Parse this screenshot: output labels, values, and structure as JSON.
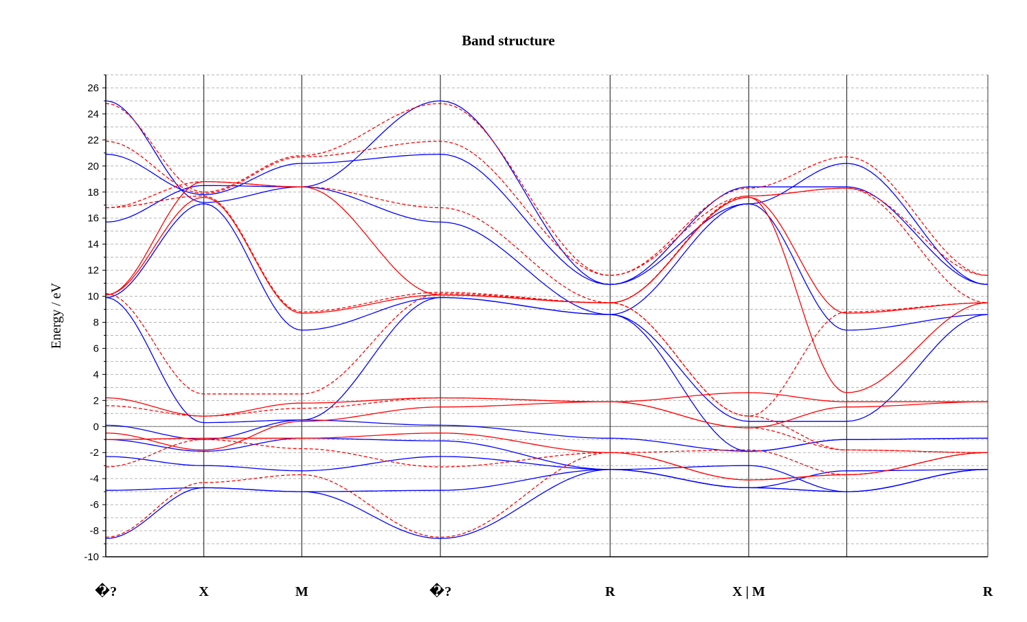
{
  "chart_data": {
    "type": "line",
    "title": "Band structure",
    "ylabel": "Energy / eV",
    "xlabel": "",
    "ylim": [
      -10,
      27
    ],
    "y_ticks": [
      -10,
      -8,
      -6,
      -4,
      -2,
      0,
      2,
      4,
      6,
      8,
      10,
      12,
      14,
      16,
      18,
      20,
      22,
      24,
      26
    ],
    "grid": "horizontal dashed",
    "x": [
      0,
      1,
      2,
      3.414,
      5.146,
      6.56,
      7.56,
      9.0
    ],
    "x_tick_labels": [
      "�?",
      "X",
      "M",
      "�?",
      "R",
      "X | M",
      "",
      "R"
    ],
    "x_tick_label_indices": [
      0,
      1,
      2,
      3,
      4,
      5,
      7
    ],
    "series": [
      {
        "name": "",
        "color": "#0000ff",
        "style": "solid",
        "values": [
          25.0,
          17.2,
          18.4,
          25.0,
          10.9,
          18.4,
          18.4,
          10.9
        ]
      },
      {
        "name": "",
        "color": "#0000ff",
        "style": "solid",
        "values": [
          20.9,
          17.8,
          20.2,
          20.9,
          10.9,
          17.1,
          20.2,
          10.9
        ]
      },
      {
        "name": "",
        "color": "#0000ff",
        "style": "solid",
        "values": [
          15.7,
          18.5,
          18.4,
          15.7,
          8.6,
          17.1,
          7.4,
          8.6
        ]
      },
      {
        "name": "",
        "color": "#0000ff",
        "style": "solid",
        "values": [
          9.9,
          17.1,
          7.4,
          9.9,
          8.6,
          0.4,
          0.4,
          8.6
        ]
      },
      {
        "name": "",
        "color": "#0000ff",
        "style": "solid",
        "values": [
          9.9,
          0.3,
          0.5,
          9.9,
          8.6,
          -1.9,
          -1.0,
          -0.9
        ]
      },
      {
        "name": "",
        "color": "#0000ff",
        "style": "solid",
        "values": [
          0.1,
          -1.0,
          0.5,
          0.1,
          -0.9,
          -1.9,
          -1.0,
          -0.9
        ]
      },
      {
        "name": "",
        "color": "#0000ff",
        "style": "solid",
        "values": [
          -1.0,
          -1.9,
          -0.9,
          -1.1,
          -3.3,
          -4.7,
          -3.4,
          -3.3
        ]
      },
      {
        "name": "",
        "color": "#0000ff",
        "style": "solid",
        "values": [
          -2.3,
          -3.0,
          -3.4,
          -2.3,
          -3.3,
          -3.0,
          -5.0,
          -3.3
        ]
      },
      {
        "name": "",
        "color": "#0000ff",
        "style": "solid",
        "values": [
          -4.9,
          -4.7,
          -5.0,
          -4.9,
          -3.3,
          -4.7,
          -5.0,
          -3.3
        ]
      },
      {
        "name": "",
        "color": "#0000ff",
        "style": "solid",
        "values": [
          -8.6,
          -4.7,
          -5.0,
          -8.6,
          -3.3,
          -4.7,
          -5.0,
          -3.3
        ]
      },
      {
        "name": "",
        "color": "#ff0000",
        "style": "solid",
        "values": [
          10.1,
          17.6,
          8.7,
          10.1,
          9.5,
          17.6,
          8.7,
          9.5
        ]
      },
      {
        "name": "",
        "color": "#ff0000",
        "style": "solid",
        "values": [
          10.1,
          18.8,
          18.4,
          10.1,
          9.5,
          17.6,
          2.6,
          9.5
        ]
      },
      {
        "name": "",
        "color": "#ff0000",
        "style": "solid",
        "values": [
          2.2,
          0.8,
          1.8,
          2.2,
          1.9,
          2.6,
          1.9,
          1.9
        ]
      },
      {
        "name": "",
        "color": "#ff0000",
        "style": "solid",
        "values": [
          -0.5,
          -1.8,
          0.4,
          1.5,
          1.9,
          -0.1,
          1.5,
          1.9
        ]
      },
      {
        "name": "",
        "color": "#ff0000",
        "style": "solid",
        "values": [
          -1.0,
          -0.9,
          -0.9,
          -0.5,
          -2.0,
          -4.1,
          -3.7,
          -2.0
        ]
      },
      {
        "name": "",
        "color": "#ff0000",
        "style": "dashed",
        "values": [
          24.8,
          18.0,
          20.8,
          24.8,
          11.6,
          18.3,
          20.7,
          11.6
        ]
      },
      {
        "name": "",
        "color": "#ff0000",
        "style": "dashed",
        "values": [
          21.9,
          17.9,
          20.7,
          21.9,
          11.6,
          17.7,
          18.3,
          11.6
        ]
      },
      {
        "name": "",
        "color": "#ff0000",
        "style": "dashed",
        "values": [
          16.8,
          18.8,
          18.4,
          16.8,
          9.5,
          17.7,
          18.3,
          9.5
        ]
      },
      {
        "name": "",
        "color": "#ff0000",
        "style": "dashed",
        "values": [
          16.8,
          17.7,
          8.8,
          10.3,
          9.5,
          0.8,
          8.8,
          9.5
        ]
      },
      {
        "name": "",
        "color": "#ff0000",
        "style": "dashed",
        "values": [
          10.2,
          2.5,
          2.5,
          10.2,
          9.5,
          0.8,
          -1.8,
          -2.0
        ]
      },
      {
        "name": "",
        "color": "#ff0000",
        "style": "dashed",
        "values": [
          1.6,
          0.8,
          1.4,
          2.2,
          1.9,
          -0.1,
          -1.8,
          -2.0
        ]
      },
      {
        "name": "",
        "color": "#ff0000",
        "style": "dashed",
        "values": [
          -3.1,
          -1.0,
          -1.7,
          -3.1,
          -2.0,
          -1.8,
          -3.7,
          -2.0
        ]
      },
      {
        "name": "",
        "color": "#ff0000",
        "style": "dashed",
        "values": [
          -8.5,
          -4.3,
          -3.7,
          -8.5,
          -2.0,
          -4.1,
          -3.7,
          -2.0
        ]
      }
    ]
  }
}
